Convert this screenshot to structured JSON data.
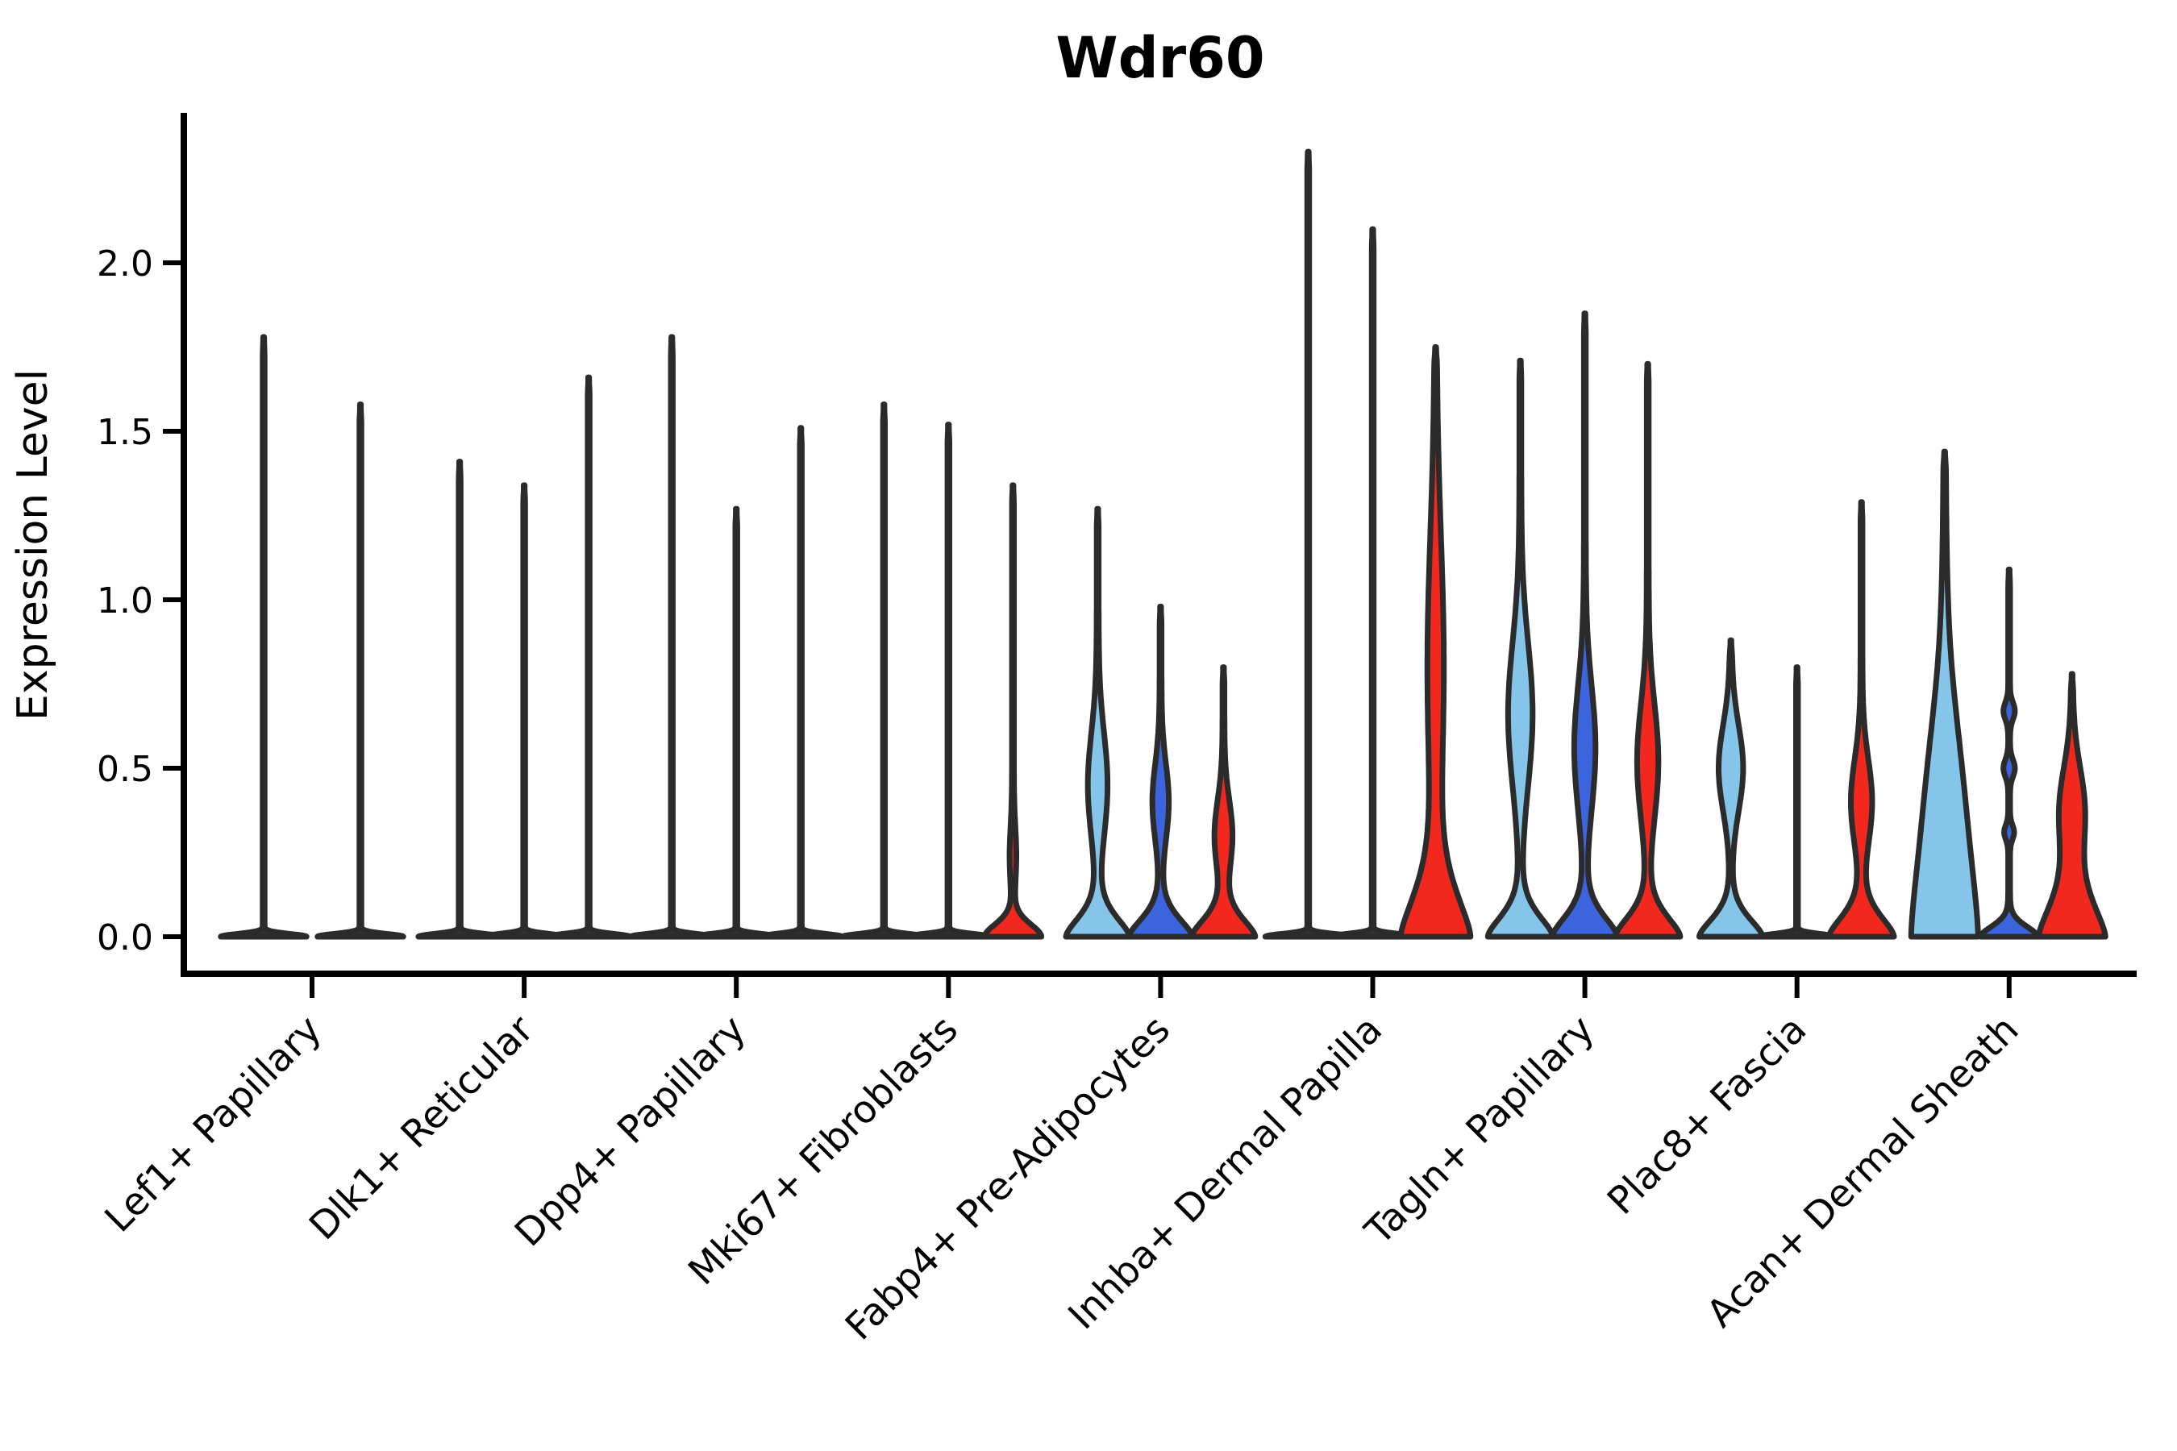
{
  "chart_data": {
    "type": "violin",
    "title": "Wdr60",
    "ylabel": "Expression Level",
    "xlabel": "",
    "grid": false,
    "legend_position": "none",
    "ylim": [
      0,
      2.45
    ],
    "yticks": [
      {
        "value": 0.0,
        "label": "0.0"
      },
      {
        "value": 0.5,
        "label": "0.5"
      },
      {
        "value": 1.0,
        "label": "1.0"
      },
      {
        "value": 1.5,
        "label": "1.5"
      },
      {
        "value": 2.0,
        "label": "2.0"
      }
    ],
    "categories": [
      "Lef1+ Papillary",
      "Dlk1+ Reticular",
      "Dpp4+ Papillary",
      "Mki67+ Fibroblasts",
      "Fabp4+ Pre-Adipocytes",
      "Inhba+ Dermal Papilla",
      "Tagln+ Papillary",
      "Plac8+ Fascia",
      "Acan+ Dermal Sheath"
    ],
    "palette": {
      "lightblue": "#85C5E9",
      "blue": "#3C64DC",
      "red": "#F2281E",
      "dark": "#333333"
    },
    "outline_color": "#2B2B2B",
    "groups": [
      {
        "category": "Lef1+ Papillary",
        "violins": [
          {
            "pos": -60,
            "top": 1.78,
            "color": "dark",
            "base": [
              52,
              0.012,
              2
            ],
            "bulges": []
          },
          {
            "pos": 60,
            "top": 1.58,
            "color": "dark",
            "base": [
              52,
              0.012,
              2
            ],
            "bulges": []
          }
        ]
      },
      {
        "category": "Dlk1+ Reticular",
        "violins": [
          {
            "pos": -80,
            "top": 1.41,
            "color": "dark",
            "base": [
              50,
              0.012,
              2
            ],
            "bulges": []
          },
          {
            "pos": 0,
            "top": 1.34,
            "color": "dark",
            "base": [
              50,
              0.012,
              2
            ],
            "bulges": []
          },
          {
            "pos": 80,
            "top": 1.66,
            "color": "dark",
            "base": [
              50,
              0.012,
              2
            ],
            "bulges": []
          }
        ]
      },
      {
        "category": "Dpp4+ Papillary",
        "violins": [
          {
            "pos": -80,
            "top": 1.78,
            "color": "dark",
            "base": [
              50,
              0.012,
              2
            ],
            "bulges": []
          },
          {
            "pos": 0,
            "top": 1.27,
            "color": "dark",
            "base": [
              50,
              0.012,
              2
            ],
            "bulges": []
          },
          {
            "pos": 80,
            "top": 1.51,
            "color": "dark",
            "base": [
              50,
              0.012,
              2
            ],
            "bulges": []
          }
        ]
      },
      {
        "category": "Mki67+ Fibroblasts",
        "violins": [
          {
            "pos": -80,
            "top": 1.58,
            "color": "dark",
            "base": [
              50,
              0.012,
              2
            ],
            "bulges": []
          },
          {
            "pos": 0,
            "top": 1.52,
            "color": "dark",
            "base": [
              50,
              0.012,
              2
            ],
            "bulges": []
          },
          {
            "pos": 80,
            "top": 1.34,
            "color": "red",
            "base": [
              34,
              0.055,
              1.8
            ],
            "bulges": [
              [
                0.24,
                3,
                0.12
              ]
            ]
          }
        ]
      },
      {
        "category": "Fabp4+ Pre-Adipocytes",
        "violins": [
          {
            "pos": -78,
            "top": 1.27,
            "color": "lightblue",
            "base": [
              38,
              0.085,
              1.6
            ],
            "bulges": [
              [
                0.45,
                11,
                0.22
              ]
            ]
          },
          {
            "pos": 0,
            "top": 0.98,
            "color": "blue",
            "base": [
              38,
              0.08,
              1.6
            ],
            "bulges": [
              [
                0.4,
                9,
                0.16
              ]
            ]
          },
          {
            "pos": 78,
            "top": 0.8,
            "color": "red",
            "base": [
              38,
              0.08,
              1.6
            ],
            "bulges": [
              [
                0.3,
                10,
                0.15
              ]
            ]
          }
        ]
      },
      {
        "category": "Inhba+ Dermal Papilla",
        "violins": [
          {
            "pos": -80,
            "top": 2.33,
            "color": "dark",
            "base": [
              52,
              0.012,
              2
            ],
            "bulges": []
          },
          {
            "pos": 0,
            "top": 2.1,
            "color": "dark",
            "base": [
              52,
              0.012,
              2
            ],
            "bulges": []
          },
          {
            "pos": 78,
            "top": 1.75,
            "color": "red",
            "base": [
              41,
              0.19,
              1.5
            ],
            "bulges": [
              [
                0.8,
                9,
                0.55
              ]
            ]
          }
        ]
      },
      {
        "category": "Tagln+ Papillary",
        "violins": [
          {
            "pos": -80,
            "top": 1.71,
            "color": "lightblue",
            "base": [
              39,
              0.09,
              1.6
            ],
            "bulges": [
              [
                0.66,
                14,
                0.3
              ]
            ]
          },
          {
            "pos": 0,
            "top": 1.85,
            "color": "blue",
            "base": [
              39,
              0.09,
              1.6
            ],
            "bulges": [
              [
                0.56,
                12,
                0.26
              ]
            ]
          },
          {
            "pos": 78,
            "top": 1.7,
            "color": "red",
            "base": [
              39,
              0.09,
              1.6
            ],
            "bulges": [
              [
                0.52,
                12,
                0.24
              ]
            ]
          }
        ]
      },
      {
        "category": "Plac8+ Fascia",
        "violins": [
          {
            "pos": -82,
            "top": 0.88,
            "color": "lightblue",
            "base": [
              38,
              0.08,
              1.6
            ],
            "bulges": [
              [
                0.5,
                14,
                0.18
              ]
            ]
          },
          {
            "pos": 0,
            "top": 0.8,
            "color": "dark",
            "base": [
              45,
              0.012,
              2
            ],
            "bulges": []
          },
          {
            "pos": 80,
            "top": 1.29,
            "color": "red",
            "base": [
              39,
              0.09,
              1.6
            ],
            "bulges": [
              [
                0.4,
                12,
                0.18
              ]
            ]
          }
        ]
      },
      {
        "category": "Acan+ Dermal Sheath",
        "violins": [
          {
            "pos": -80,
            "top": 1.44,
            "color": "lightblue",
            "base": [
              40,
              0.52,
              1.5
            ],
            "bulges": [
              [
                0.5,
                5,
                0.3
              ]
            ]
          },
          {
            "pos": 0,
            "top": 1.09,
            "color": "blue",
            "base": [
              34,
              0.045,
              1.8
            ],
            "bulges": [
              [
                0.67,
                6,
                0.035
              ],
              [
                0.5,
                6,
                0.035
              ],
              [
                0.31,
                5,
                0.03
              ]
            ]
          },
          {
            "pos": 78,
            "top": 0.78,
            "color": "red",
            "base": [
              40,
              0.16,
              1.5
            ],
            "bulges": [
              [
                0.38,
                14,
                0.18
              ]
            ]
          }
        ]
      }
    ]
  }
}
